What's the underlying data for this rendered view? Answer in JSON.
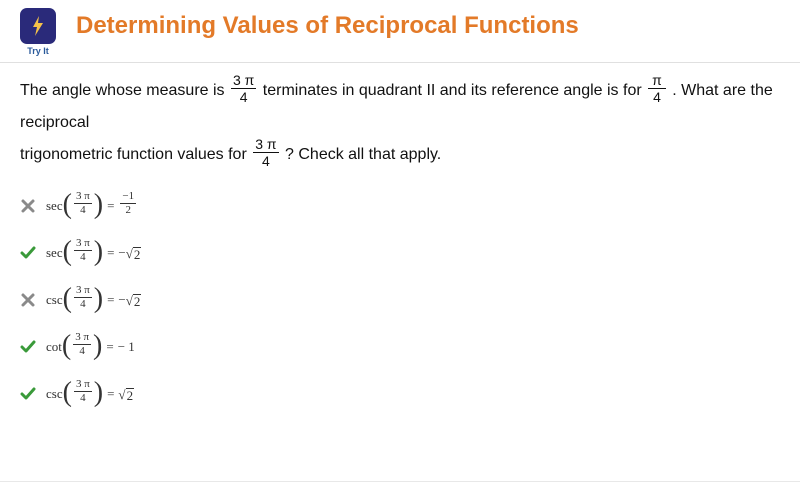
{
  "header": {
    "icon_caption": "Try It",
    "title": "Determining Values of Reciprocal Functions",
    "title_color": "#e37a28",
    "icon_bg": "#2a2a7a"
  },
  "question": {
    "part1": "The angle whose measure is ",
    "frac1_num": "3 π",
    "frac1_den": "4",
    "part2": " terminates in quadrant II and its reference angle is for ",
    "frac2_num": "π",
    "frac2_den": "4",
    "part3": ". What are the reciprocal",
    "part4": "trigonometric function values for ",
    "frac3_num": "3 π",
    "frac3_den": "4",
    "part5": "? Check all that apply."
  },
  "colors": {
    "correct": "#3a9a3a",
    "wrong": "#8a8a8a"
  },
  "answers": [
    {
      "mark": "wrong",
      "fn": "sec",
      "arg_num": "3 π",
      "arg_den": "4",
      "rhs_type": "frac",
      "rhs_num": "−1",
      "rhs_den": "2"
    },
    {
      "mark": "correct",
      "fn": "sec",
      "arg_num": "3 π",
      "arg_den": "4",
      "rhs_type": "nsqrt",
      "rhs_arg": "2"
    },
    {
      "mark": "wrong",
      "fn": "csc",
      "arg_num": "3 π",
      "arg_den": "4",
      "rhs_type": "nsqrt",
      "rhs_arg": "2"
    },
    {
      "mark": "correct",
      "fn": "cot",
      "arg_num": "3 π",
      "arg_den": "4",
      "rhs_type": "plain",
      "rhs_text": "− 1"
    },
    {
      "mark": "correct",
      "fn": "csc",
      "arg_num": "3 π",
      "arg_den": "4",
      "rhs_type": "psqrt",
      "rhs_arg": "2"
    }
  ]
}
